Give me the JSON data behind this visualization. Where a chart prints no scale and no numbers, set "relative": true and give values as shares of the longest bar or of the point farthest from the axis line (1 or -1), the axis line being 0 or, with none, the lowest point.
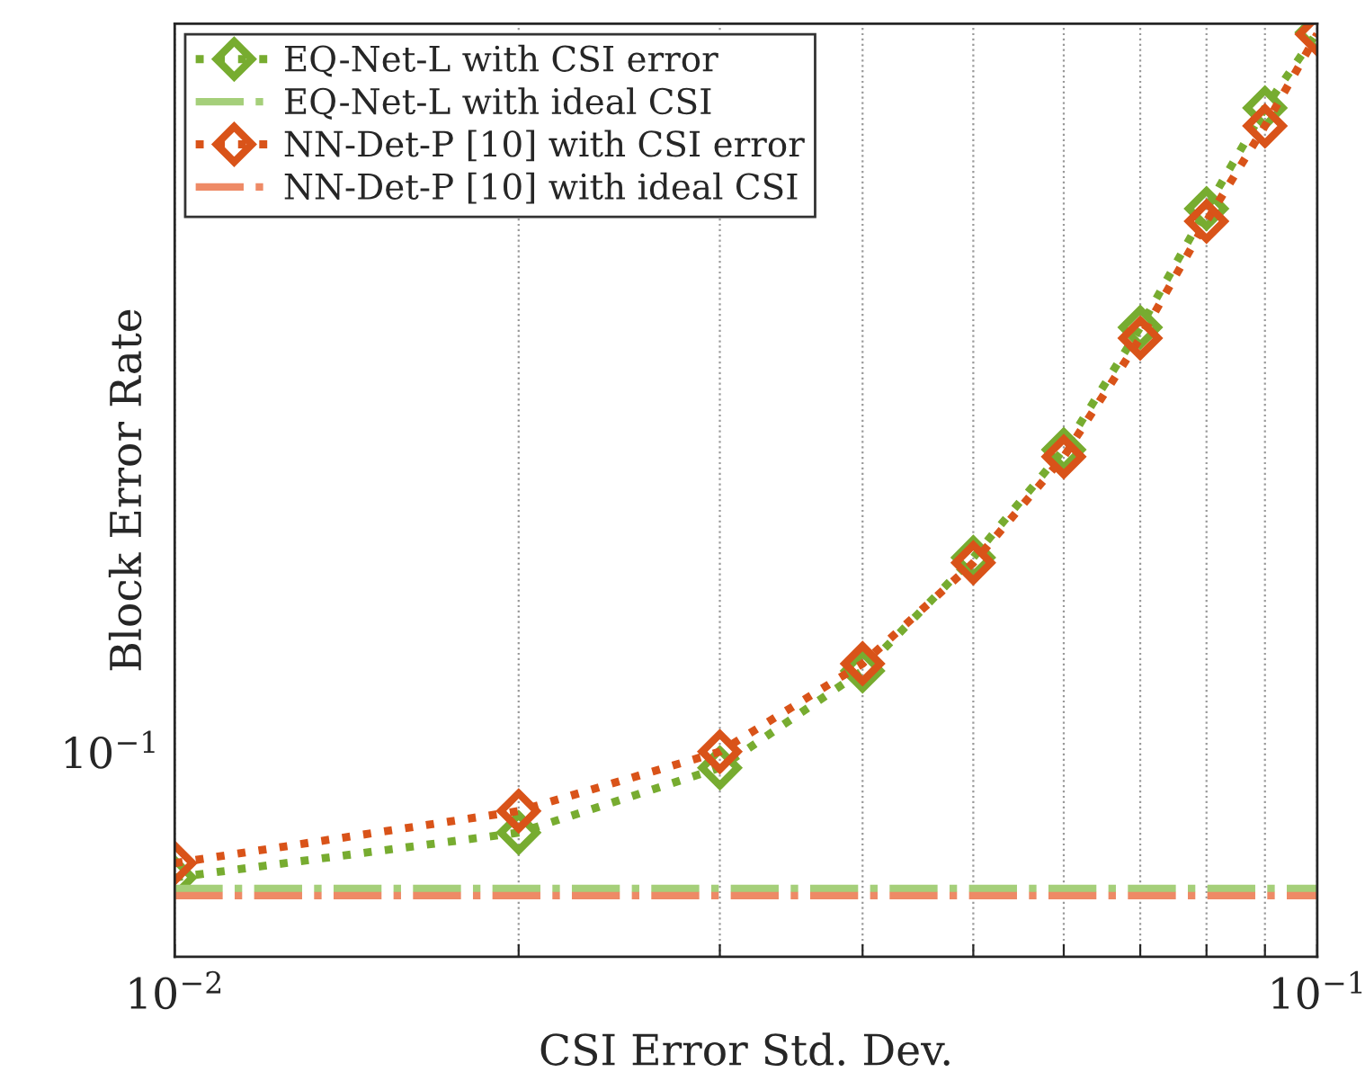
{
  "chart_data": {
    "type": "line",
    "xlabel": "CSI Error Std. Dev.",
    "ylabel": "Block Error Rate",
    "log": "x",
    "relative": true,
    "grid": "x",
    "legend": "top left",
    "annotations": [
      "10$^{−1}$"
    ],
    "x": [
      0.01,
      0.02,
      0.03,
      0.04,
      0.05,
      0.06,
      0.07,
      0.08,
      0.09,
      0.1
    ],
    "xlim": [
      0.01,
      0.1
    ],
    "xticks": [
      {
        "value": 0.01,
        "label": "10$^{−2}$"
      },
      {
        "value": 0.02,
        "label": null
      },
      {
        "value": 0.03,
        "label": null
      },
      {
        "value": 0.04,
        "label": null
      },
      {
        "value": 0.05,
        "label": null
      },
      {
        "value": 0.06,
        "label": null
      },
      {
        "value": 0.07,
        "label": null
      },
      {
        "value": 0.08,
        "label": null
      },
      {
        "value": 0.09,
        "label": null
      },
      {
        "value": 0.1,
        "label": "10$^{−1}$"
      }
    ],
    "series": [
      {
        "name": "EQ-Net-L with CSI error",
        "color": "#77ac30",
        "line_style": "dotted",
        "marker": "diamond",
        "values": [
          0.0856,
          0.1342,
          0.2043,
          0.3093,
          0.4319,
          0.5486,
          0.6809,
          0.8093,
          0.9183,
          1
        ]
      },
      {
        "name": "EQ-Net-L with ideal CSI",
        "color": "#a5cf7a",
        "line_style": "dashdot",
        "marker": "none",
        "values": [
          0.0739,
          0.0739,
          0.0739,
          0.0739,
          0.0739,
          0.0739,
          0.0739,
          0.0739,
          0.0739,
          0.0739
        ]
      },
      {
        "name": "NN-Det-P [10] with CSI error",
        "color": "#d95319",
        "line_style": "dotted",
        "marker": "diamond",
        "values": [
          0.1012,
          0.1576,
          0.2218,
          0.3171,
          0.4261,
          0.5409,
          0.6693,
          0.7957,
          0.8988,
          0.9981
        ]
      },
      {
        "name": "NN-Det-P [10] with ideal CSI",
        "color": "#ee8a66",
        "line_style": "dashdot",
        "marker": "none",
        "values": [
          0.0661,
          0.0661,
          0.0661,
          0.0661,
          0.0661,
          0.0661,
          0.0661,
          0.0661,
          0.0661,
          0.0661
        ]
      }
    ]
  }
}
